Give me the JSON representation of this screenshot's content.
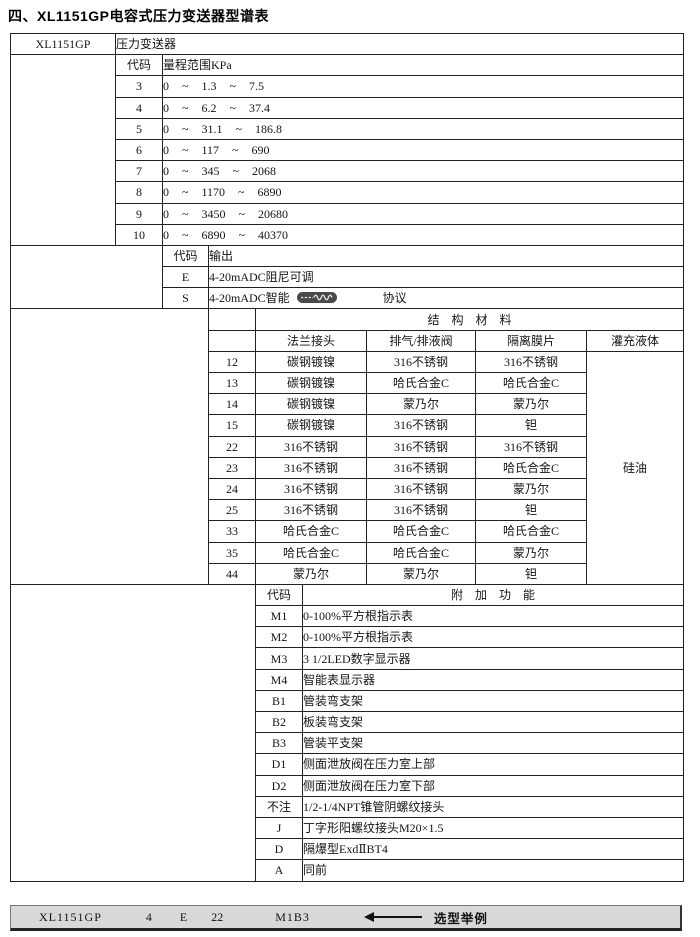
{
  "title": "四、XL1151GP电容式压力变送器型谱表",
  "model_row": {
    "model": "XL1151GP",
    "name": "压力变送器"
  },
  "range_section": {
    "code_header": "代码",
    "header": "量程范围KPa",
    "rows": [
      {
        "code": "3",
        "range": "0 ~ 1.3 ~ 7.5"
      },
      {
        "code": "4",
        "range": "0 ~ 6.2 ~ 37.4"
      },
      {
        "code": "5",
        "range": "0 ~ 31.1 ~ 186.8"
      },
      {
        "code": "6",
        "range": "0 ~ 117 ~ 690"
      },
      {
        "code": "7",
        "range": "0 ~ 345 ~ 2068"
      },
      {
        "code": "8",
        "range": "0 ~ 1170 ~ 6890"
      },
      {
        "code": "9",
        "range": "0 ~ 3450 ~ 20680"
      },
      {
        "code": "10",
        "range": "0 ~ 6890 ~ 40370"
      }
    ]
  },
  "output_section": {
    "code_header": "代码",
    "header": "输出",
    "rows": [
      {
        "code": "E",
        "desc": "4-20mADC阻尼可调"
      },
      {
        "code": "S",
        "desc_prefix": "4-20mADC智能",
        "logo_icon": "hart-protocol-logo",
        "desc_suffix": "协议"
      }
    ]
  },
  "materials_section": {
    "header": "结 构 材 料",
    "columns": [
      "法兰接头",
      "排气/排液阀",
      "隔离膜片",
      "灌充液体"
    ],
    "fill_fluid": "硅油",
    "rows": [
      {
        "code": "12",
        "flange": "碳钢镀镍",
        "vent": "316不锈钢",
        "diaphragm": "316不锈钢"
      },
      {
        "code": "13",
        "flange": "碳钢镀镍",
        "vent": "哈氏合金C",
        "diaphragm": "哈氏合金C"
      },
      {
        "code": "14",
        "flange": "碳钢镀镍",
        "vent": "蒙乃尔",
        "diaphragm": "蒙乃尔"
      },
      {
        "code": "15",
        "flange": "碳钢镀镍",
        "vent": "316不锈钢",
        "diaphragm": "钽"
      },
      {
        "code": "22",
        "flange": "316不锈钢",
        "vent": "316不锈钢",
        "diaphragm": "316不锈钢"
      },
      {
        "code": "23",
        "flange": "316不锈钢",
        "vent": "316不锈钢",
        "diaphragm": "哈氏合金C"
      },
      {
        "code": "24",
        "flange": "316不锈钢",
        "vent": "316不锈钢",
        "diaphragm": "蒙乃尔"
      },
      {
        "code": "25",
        "flange": "316不锈钢",
        "vent": "316不锈钢",
        "diaphragm": "钽"
      },
      {
        "code": "33",
        "flange": "哈氏合金C",
        "vent": "哈氏合金C",
        "diaphragm": "哈氏合金C"
      },
      {
        "code": "35",
        "flange": "哈氏合金C",
        "vent": "哈氏合金C",
        "diaphragm": "蒙乃尔"
      },
      {
        "code": "44",
        "flange": "蒙乃尔",
        "vent": "蒙乃尔",
        "diaphragm": "钽"
      }
    ]
  },
  "addons_section": {
    "code_header": "代码",
    "header": "附 加 功 能",
    "rows": [
      {
        "code": "M1",
        "desc": "0-100%平方根指示表"
      },
      {
        "code": "M2",
        "desc": "0-100%平方根指示表"
      },
      {
        "code": "M3",
        "desc": "3 1/2LED数字显示器"
      },
      {
        "code": "M4",
        "desc": "智能表显示器"
      },
      {
        "code": "B1",
        "desc": "管装弯支架"
      },
      {
        "code": "B2",
        "desc": "板装弯支架"
      },
      {
        "code": "B3",
        "desc": "管装平支架"
      },
      {
        "code": "D1",
        "desc": "侧面泄放阀在压力室上部"
      },
      {
        "code": "D2",
        "desc": "侧面泄放阀在压力室下部"
      },
      {
        "code": "不注",
        "desc": "1/2-1/4NPT锥管阴螺纹接头"
      },
      {
        "code": "J",
        "desc": "丁字形阳螺纹接头M20×1.5"
      },
      {
        "code": "D",
        "desc": "隔爆型ExdⅡBT4"
      },
      {
        "code": "A",
        "desc": "同前"
      }
    ]
  },
  "example_bar": {
    "model": "XL1151GP",
    "codes": [
      "4",
      "E",
      "22",
      "M1B3"
    ],
    "label": "选型举例"
  },
  "colors": {
    "border": "#222222",
    "example_bar_bg": "#d8d8d8",
    "text": "#151515",
    "hart_logo_bg": "#4a4a4a"
  }
}
